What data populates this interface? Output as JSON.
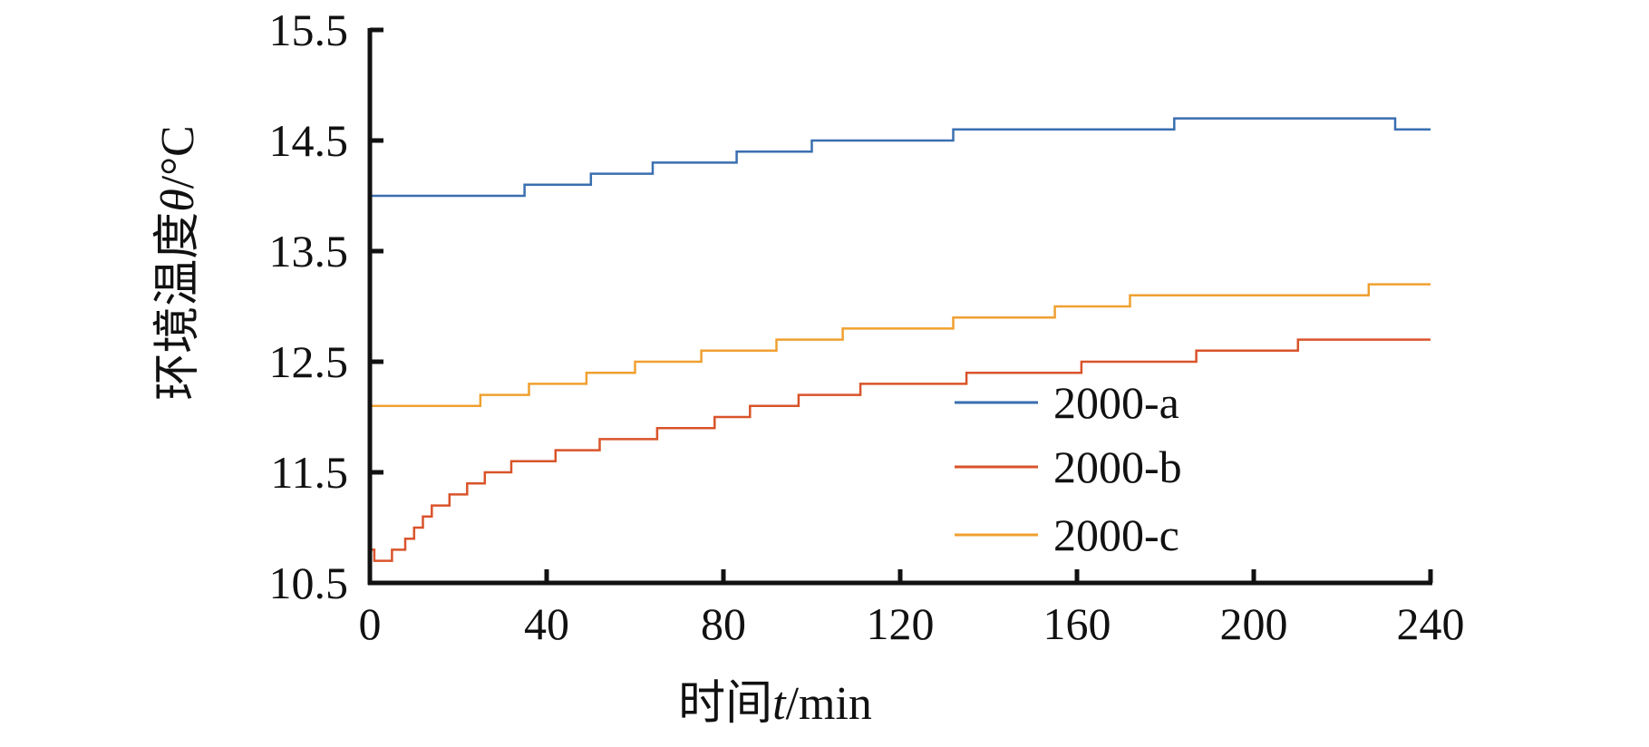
{
  "chart_data": {
    "type": "line",
    "title": "",
    "xlabel": "时间t/min",
    "xlabel_parts": {
      "prefix": "时间",
      "var": "t",
      "suffix": "/min"
    },
    "ylabel": "环境温度θ/°C",
    "ylabel_parts": {
      "prefix": "环境温度",
      "var": "θ",
      "suffix": "/°C"
    },
    "xlim": [
      0,
      240
    ],
    "ylim": [
      10.5,
      15.5
    ],
    "x_ticks": [
      0,
      40,
      80,
      120,
      160,
      200,
      240
    ],
    "x_tick_labels": [
      "0",
      "40",
      "80",
      "120",
      "160",
      "200",
      "240"
    ],
    "y_ticks": [
      10.5,
      11.5,
      12.5,
      13.5,
      14.5,
      15.5
    ],
    "y_tick_labels": [
      "10.5",
      "11.5",
      "12.5",
      "13.5",
      "14.5",
      "15.5"
    ],
    "grid": false,
    "legend_position": "center-right",
    "series": [
      {
        "name": "2000-a",
        "color": "#3a6fb0",
        "steps": [
          [
            0,
            14.0
          ],
          [
            35,
            14.1
          ],
          [
            50,
            14.2
          ],
          [
            64,
            14.3
          ],
          [
            83,
            14.4
          ],
          [
            100,
            14.5
          ],
          [
            132,
            14.6
          ],
          [
            182,
            14.7
          ],
          [
            232,
            14.6
          ],
          [
            240,
            14.6
          ]
        ]
      },
      {
        "name": "2000-b",
        "color": "#d9532a",
        "steps": [
          [
            0,
            10.8
          ],
          [
            1,
            10.7
          ],
          [
            5,
            10.8
          ],
          [
            8,
            10.9
          ],
          [
            10,
            11.0
          ],
          [
            12,
            11.1
          ],
          [
            14,
            11.2
          ],
          [
            18,
            11.3
          ],
          [
            22,
            11.4
          ],
          [
            26,
            11.5
          ],
          [
            32,
            11.6
          ],
          [
            42,
            11.7
          ],
          [
            52,
            11.8
          ],
          [
            65,
            11.9
          ],
          [
            78,
            12.0
          ],
          [
            86,
            12.1
          ],
          [
            97,
            12.2
          ],
          [
            111,
            12.3
          ],
          [
            135,
            12.4
          ],
          [
            161,
            12.5
          ],
          [
            187,
            12.6
          ],
          [
            210,
            12.7
          ],
          [
            240,
            12.7
          ]
        ]
      },
      {
        "name": "2000-c",
        "color": "#f0a030",
        "steps": [
          [
            0,
            12.1
          ],
          [
            25,
            12.2
          ],
          [
            36,
            12.3
          ],
          [
            49,
            12.4
          ],
          [
            60,
            12.5
          ],
          [
            75,
            12.6
          ],
          [
            92,
            12.7
          ],
          [
            107,
            12.8
          ],
          [
            132,
            12.9
          ],
          [
            155,
            13.0
          ],
          [
            172,
            13.1
          ],
          [
            226,
            13.2
          ],
          [
            240,
            13.2
          ]
        ]
      }
    ]
  }
}
